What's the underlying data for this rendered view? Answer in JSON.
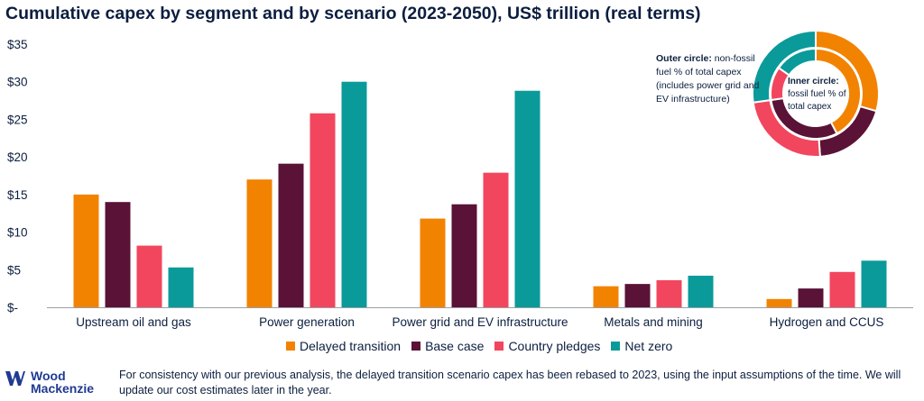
{
  "title": "Cumulative capex by segment and by scenario (2023-2050), US$ trillion (real terms)",
  "colors": {
    "delayed": "#f28300",
    "base": "#5a1236",
    "pledges": "#f2465e",
    "netzero": "#0a9a9a"
  },
  "chart_data": {
    "type": "bar",
    "categories": [
      "Upstream oil and gas",
      "Power generation",
      "Power grid and EV infrastructure",
      "Metals and mining",
      "Hydrogen and CCUS"
    ],
    "series": [
      {
        "name": "Delayed transition",
        "values": [
          15,
          17,
          11.8,
          2.8,
          1.1
        ]
      },
      {
        "name": "Base case",
        "values": [
          14,
          19.1,
          13.7,
          3.1,
          2.5
        ]
      },
      {
        "name": "Country pledges",
        "values": [
          8.2,
          25.8,
          17.9,
          3.6,
          4.7
        ]
      },
      {
        "name": "Net zero",
        "values": [
          5.3,
          30,
          28.8,
          4.2,
          6.2
        ]
      }
    ],
    "ylim": [
      0,
      35
    ],
    "yticks": [
      "$-",
      "$5",
      "$10",
      "$15",
      "$20",
      "$25",
      "$30",
      "$35"
    ],
    "legend_position": "bottom"
  },
  "donut": {
    "outer_label_bold": "Outer circle:",
    "outer_label_rest": " non-fossil fuel % of total capex (includes power grid and EV infrastructure)",
    "inner_label_bold": "Inner circle:",
    "inner_label_rest": " fossil fuel % of total capex"
  },
  "legend": [
    "Delayed transition",
    "Base case",
    "Country pledges",
    "Net zero"
  ],
  "logo": {
    "line1": "Wood",
    "line2": "Mackenzie"
  },
  "footnote": "For consistency with our previous analysis, the delayed transition scenario capex has been rebased to 2023, using the input assumptions of the time. We will update our cost estimates later in the year."
}
